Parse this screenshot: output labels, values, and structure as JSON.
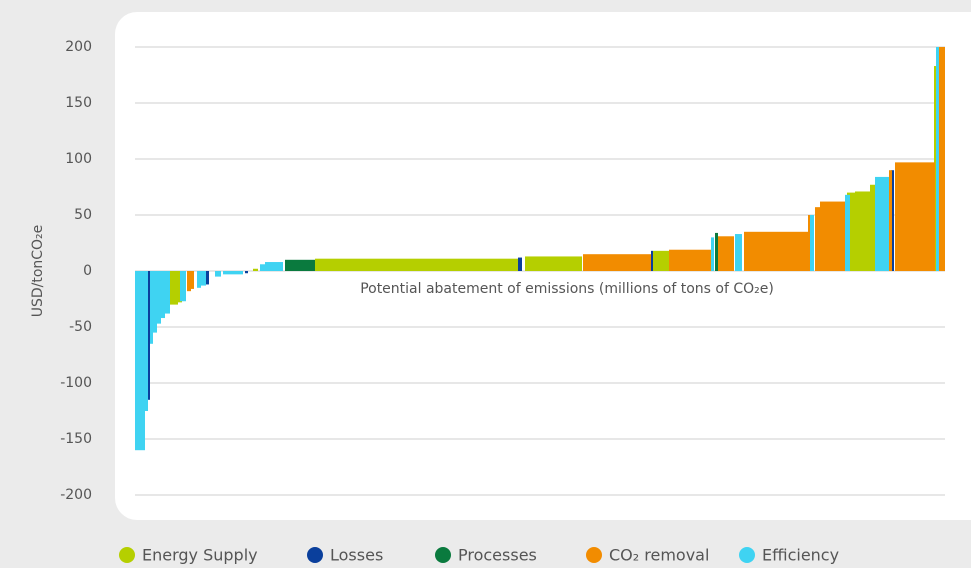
{
  "chart_data": {
    "type": "mac",
    "y_label": "USD/tonCO₂e",
    "x_label": "Potential abatement of emissions (millions of tons of CO₂e)",
    "xlim": [
      0,
      810
    ],
    "ylim": [
      -200,
      200
    ],
    "yticks": [
      -200,
      -150,
      -100,
      -50,
      0,
      50,
      100,
      150,
      200
    ],
    "grid": true,
    "legend": "bottom",
    "series": [
      {
        "name": "Energy Supply",
        "color": "#b5cf00",
        "x": [
          35,
          43,
          118,
          180,
          390,
          518,
          712,
          720,
          735,
          799
        ],
        "widths": [
          8,
          4,
          5,
          203,
          57,
          16,
          8,
          15,
          5,
          2
        ],
        "values": [
          -30,
          -28,
          2,
          11,
          13,
          18,
          70,
          71,
          77,
          183
        ]
      },
      {
        "name": "Losses",
        "color": "#0a3f9c",
        "x": [
          13,
          70,
          110,
          383,
          516,
          756
        ],
        "widths": [
          2,
          4,
          3,
          4,
          2,
          3
        ],
        "values": [
          -115,
          -12,
          -2,
          12,
          18,
          90
        ]
      },
      {
        "name": "Processes",
        "color": "#0a7a3e",
        "x": [
          150,
          580
        ],
        "widths": [
          30,
          3
        ],
        "values": [
          10,
          34
        ]
      },
      {
        "name": "CO₂ removal",
        "color": "#f28c00",
        "x": [
          52,
          56,
          448,
          534,
          583,
          609,
          673,
          680,
          685,
          754,
          760,
          802
        ],
        "widths": [
          4,
          3,
          68,
          42,
          16,
          65,
          3,
          5,
          28,
          3,
          40,
          8
        ],
        "values": [
          -18,
          -16,
          15,
          19,
          31,
          35,
          50,
          57,
          62,
          90,
          97,
          200
        ]
      },
      {
        "name": "Efficiency",
        "color": "#3fd3f2",
        "x": [
          0,
          10,
          15,
          18,
          22,
          26,
          30,
          45,
          62,
          66,
          80,
          88,
          125,
          130,
          576,
          600,
          675,
          710,
          740,
          801
        ],
        "widths": [
          10,
          3,
          3,
          4,
          4,
          4,
          5,
          6,
          4,
          5,
          6,
          20,
          5,
          18,
          3,
          7,
          4,
          5,
          14,
          3
        ],
        "values": [
          -160,
          -125,
          -65,
          -55,
          -47,
          -42,
          -38,
          -27,
          -15,
          -13,
          -5,
          -3,
          6,
          8,
          30,
          33,
          50,
          68,
          84,
          200
        ]
      }
    ]
  }
}
